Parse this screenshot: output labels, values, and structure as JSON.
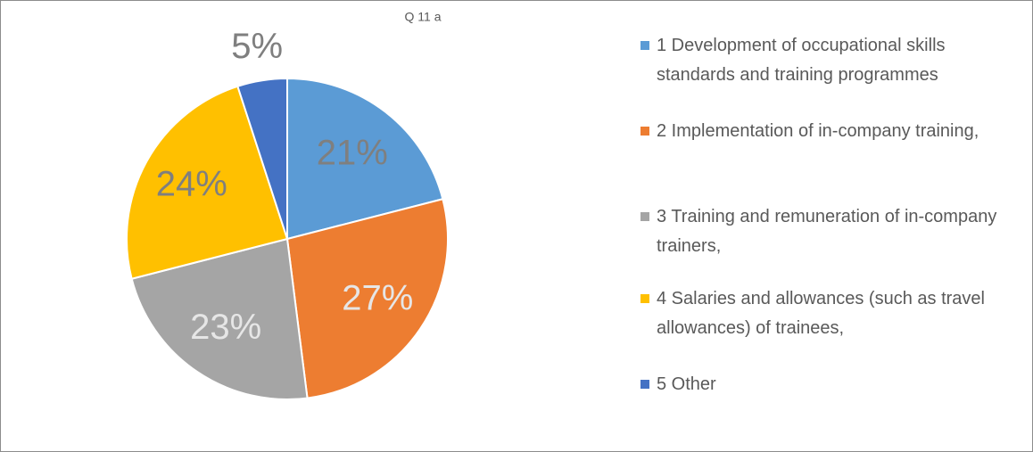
{
  "chart_data": {
    "type": "pie",
    "title": "Q 11 a",
    "categories": [
      "1 Development of occupational skills standards and training programmes",
      "2 Implementation of in-company training,",
      "3 Training and remuneration of in-company trainers,",
      "4 Salaries and allowances (such as travel allowances) of trainees,",
      "5 Other"
    ],
    "values": [
      21,
      27,
      23,
      24,
      5
    ],
    "value_labels": [
      "21%",
      "27%",
      "23%",
      "24%",
      "5%"
    ],
    "colors": [
      "#5b9bd5",
      "#ed7d31",
      "#a5a5a5",
      "#ffc000",
      "#4472c4"
    ],
    "legend": "right"
  }
}
